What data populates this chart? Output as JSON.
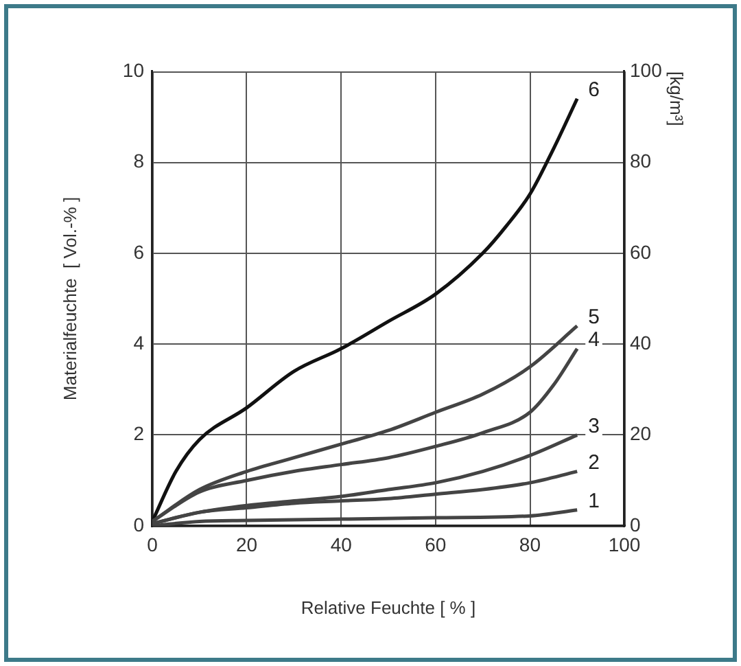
{
  "chart_data": {
    "type": "line",
    "xlabel": "Relative Feuchte [ % ]",
    "ylabel": "Materialfeuchte  [ Vol.-% ]",
    "y2label": "[kg/m³]",
    "xlim": [
      0,
      100
    ],
    "xticks": [
      0,
      20,
      40,
      60,
      80,
      100
    ],
    "ylim": [
      0,
      10
    ],
    "yticks": [
      0,
      2,
      4,
      6,
      8,
      10
    ],
    "y2lim": [
      0,
      100
    ],
    "y2ticks": [
      0,
      20,
      40,
      60,
      80,
      100
    ],
    "grid": true,
    "legend": false,
    "marker": "none",
    "line_style": "solid",
    "series": [
      {
        "name": "1",
        "color": "#444444",
        "x": [
          0,
          10,
          20,
          40,
          60,
          80,
          90
        ],
        "values": [
          0,
          0.1,
          0.12,
          0.15,
          0.18,
          0.22,
          0.35
        ]
      },
      {
        "name": "2",
        "color": "#444444",
        "x": [
          0,
          10,
          20,
          30,
          40,
          50,
          60,
          70,
          80,
          90
        ],
        "values": [
          0.05,
          0.3,
          0.4,
          0.5,
          0.55,
          0.6,
          0.7,
          0.8,
          0.95,
          1.2
        ]
      },
      {
        "name": "3",
        "color": "#444444",
        "x": [
          0,
          10,
          20,
          30,
          40,
          50,
          60,
          70,
          80,
          90
        ],
        "values": [
          0.05,
          0.3,
          0.45,
          0.55,
          0.65,
          0.8,
          0.95,
          1.2,
          1.55,
          2.0
        ]
      },
      {
        "name": "4",
        "color": "#444444",
        "x": [
          0,
          10,
          20,
          30,
          40,
          50,
          60,
          70,
          80,
          85,
          90
        ],
        "values": [
          0.1,
          0.75,
          1.0,
          1.2,
          1.35,
          1.5,
          1.75,
          2.05,
          2.5,
          3.1,
          3.9
        ]
      },
      {
        "name": "5",
        "color": "#444444",
        "x": [
          0,
          10,
          20,
          30,
          40,
          50,
          60,
          70,
          80,
          90
        ],
        "values": [
          0.1,
          0.8,
          1.2,
          1.5,
          1.8,
          2.1,
          2.5,
          2.9,
          3.5,
          4.4
        ]
      },
      {
        "name": "6",
        "color": "#111111",
        "x": [
          0,
          5,
          10,
          20,
          30,
          40,
          50,
          60,
          70,
          75,
          80,
          85,
          90
        ],
        "values": [
          0.1,
          1.2,
          1.9,
          2.6,
          3.4,
          3.9,
          4.5,
          5.1,
          6.0,
          6.6,
          7.3,
          8.3,
          9.4
        ]
      }
    ]
  }
}
